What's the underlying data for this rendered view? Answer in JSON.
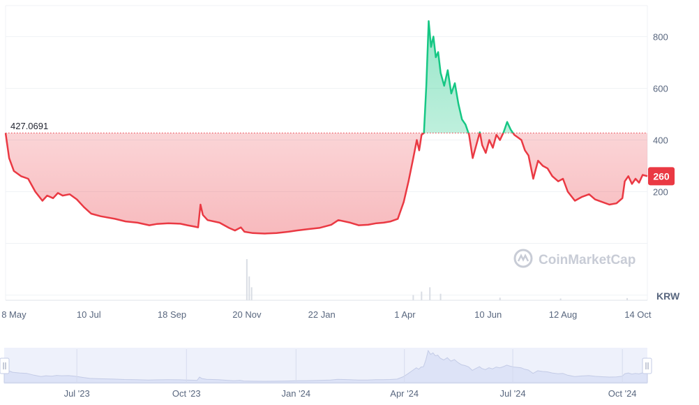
{
  "chart_data": {
    "type": "area",
    "currency": "KRW",
    "baseline_value": 427.0691,
    "baseline_label": "427.0691",
    "current_price_label": "260",
    "watermark": "CoinMarketCap",
    "ylim": [
      -220,
      920
    ],
    "y_ticks": [
      {
        "value": 800,
        "label": "800"
      },
      {
        "value": 600,
        "label": "600"
      },
      {
        "value": 400,
        "label": "400"
      },
      {
        "value": 200,
        "label": "200"
      }
    ],
    "x_ticks": [
      {
        "date": "2023-05-08",
        "label": "8 May"
      },
      {
        "date": "2023-07-10",
        "label": "10 Jul"
      },
      {
        "date": "2023-09-18",
        "label": "18 Sep"
      },
      {
        "date": "2023-11-20",
        "label": "20 Nov"
      },
      {
        "date": "2024-01-22",
        "label": "22 Jan"
      },
      {
        "date": "2024-04-01",
        "label": "1 Apr"
      },
      {
        "date": "2024-06-10",
        "label": "10 Jun"
      },
      {
        "date": "2024-08-12",
        "label": "12 Aug"
      },
      {
        "date": "2024-10-14",
        "label": "14 Oct"
      }
    ],
    "navigator_ticks": [
      {
        "date": "2023-07-01",
        "label": "Jul '23"
      },
      {
        "date": "2023-10-01",
        "label": "Oct '23"
      },
      {
        "date": "2024-01-01",
        "label": "Jan '24"
      },
      {
        "date": "2024-04-01",
        "label": "Apr '24"
      },
      {
        "date": "2024-07-01",
        "label": "Jul '24"
      },
      {
        "date": "2024-10-01",
        "label": "Oct '24"
      }
    ],
    "series": [
      {
        "points": [
          [
            "2023-05-01",
            427
          ],
          [
            "2023-05-04",
            330
          ],
          [
            "2023-05-08",
            280
          ],
          [
            "2023-05-14",
            260
          ],
          [
            "2023-05-20",
            250
          ],
          [
            "2023-05-26",
            200
          ],
          [
            "2023-06-01",
            165
          ],
          [
            "2023-06-05",
            185
          ],
          [
            "2023-06-10",
            175
          ],
          [
            "2023-06-14",
            195
          ],
          [
            "2023-06-18",
            185
          ],
          [
            "2023-06-24",
            190
          ],
          [
            "2023-06-30",
            170
          ],
          [
            "2023-07-06",
            140
          ],
          [
            "2023-07-12",
            115
          ],
          [
            "2023-07-20",
            105
          ],
          [
            "2023-08-01",
            95
          ],
          [
            "2023-08-10",
            85
          ],
          [
            "2023-08-20",
            80
          ],
          [
            "2023-08-30",
            70
          ],
          [
            "2023-09-05",
            75
          ],
          [
            "2023-09-15",
            78
          ],
          [
            "2023-09-25",
            76
          ],
          [
            "2023-10-01",
            70
          ],
          [
            "2023-10-07",
            65
          ],
          [
            "2023-10-10",
            62
          ],
          [
            "2023-10-12",
            150
          ],
          [
            "2023-10-14",
            110
          ],
          [
            "2023-10-18",
            90
          ],
          [
            "2023-10-28",
            80
          ],
          [
            "2023-11-05",
            60
          ],
          [
            "2023-11-10",
            50
          ],
          [
            "2023-11-15",
            62
          ],
          [
            "2023-11-18",
            45
          ],
          [
            "2023-11-25",
            40
          ],
          [
            "2023-12-05",
            38
          ],
          [
            "2023-12-15",
            40
          ],
          [
            "2023-12-25",
            45
          ],
          [
            "2024-01-01",
            50
          ],
          [
            "2024-01-10",
            55
          ],
          [
            "2024-01-20",
            60
          ],
          [
            "2024-01-30",
            72
          ],
          [
            "2024-02-05",
            90
          ],
          [
            "2024-02-15",
            80
          ],
          [
            "2024-02-22",
            70
          ],
          [
            "2024-03-01",
            72
          ],
          [
            "2024-03-08",
            78
          ],
          [
            "2024-03-14",
            80
          ],
          [
            "2024-03-20",
            85
          ],
          [
            "2024-03-26",
            95
          ],
          [
            "2024-03-31",
            160
          ],
          [
            "2024-04-04",
            240
          ],
          [
            "2024-04-08",
            330
          ],
          [
            "2024-04-11",
            400
          ],
          [
            "2024-04-13",
            360
          ],
          [
            "2024-04-15",
            420
          ],
          [
            "2024-04-17",
            427
          ],
          [
            "2024-04-19",
            610
          ],
          [
            "2024-04-21",
            860
          ],
          [
            "2024-04-23",
            760
          ],
          [
            "2024-04-25",
            800
          ],
          [
            "2024-04-27",
            720
          ],
          [
            "2024-04-29",
            740
          ],
          [
            "2024-05-01",
            660
          ],
          [
            "2024-05-04",
            610
          ],
          [
            "2024-05-07",
            670
          ],
          [
            "2024-05-10",
            580
          ],
          [
            "2024-05-13",
            620
          ],
          [
            "2024-05-16",
            540
          ],
          [
            "2024-05-19",
            480
          ],
          [
            "2024-05-22",
            460
          ],
          [
            "2024-05-25",
            420
          ],
          [
            "2024-05-28",
            330
          ],
          [
            "2024-05-31",
            380
          ],
          [
            "2024-06-03",
            430
          ],
          [
            "2024-06-05",
            380
          ],
          [
            "2024-06-08",
            350
          ],
          [
            "2024-06-11",
            400
          ],
          [
            "2024-06-14",
            370
          ],
          [
            "2024-06-17",
            420
          ],
          [
            "2024-06-20",
            400
          ],
          [
            "2024-06-23",
            430
          ],
          [
            "2024-06-26",
            470
          ],
          [
            "2024-06-29",
            440
          ],
          [
            "2024-07-02",
            420
          ],
          [
            "2024-07-05",
            410
          ],
          [
            "2024-07-08",
            400
          ],
          [
            "2024-07-11",
            360
          ],
          [
            "2024-07-14",
            340
          ],
          [
            "2024-07-18",
            250
          ],
          [
            "2024-07-22",
            320
          ],
          [
            "2024-07-26",
            300
          ],
          [
            "2024-07-30",
            290
          ],
          [
            "2024-08-03",
            260
          ],
          [
            "2024-08-08",
            240
          ],
          [
            "2024-08-12",
            250
          ],
          [
            "2024-08-16",
            200
          ],
          [
            "2024-08-22",
            165
          ],
          [
            "2024-08-28",
            180
          ],
          [
            "2024-09-03",
            190
          ],
          [
            "2024-09-08",
            170
          ],
          [
            "2024-09-14",
            160
          ],
          [
            "2024-09-20",
            150
          ],
          [
            "2024-09-26",
            155
          ],
          [
            "2024-10-01",
            175
          ],
          [
            "2024-10-03",
            240
          ],
          [
            "2024-10-06",
            260
          ],
          [
            "2024-10-09",
            230
          ],
          [
            "2024-10-12",
            250
          ],
          [
            "2024-10-15",
            235
          ],
          [
            "2024-10-18",
            265
          ],
          [
            "2024-10-22",
            260
          ]
        ]
      }
    ],
    "volume": [
      [
        "2023-11-20",
        0.95
      ],
      [
        "2023-11-22",
        0.55
      ],
      [
        "2023-11-24",
        0.3
      ],
      [
        "2024-04-08",
        0.12
      ],
      [
        "2024-04-15",
        0.2
      ],
      [
        "2024-04-22",
        0.3
      ],
      [
        "2024-05-01",
        0.15
      ],
      [
        "2024-06-20",
        0.06
      ],
      [
        "2024-08-10",
        0.04
      ],
      [
        "2024-10-05",
        0.05
      ]
    ]
  }
}
